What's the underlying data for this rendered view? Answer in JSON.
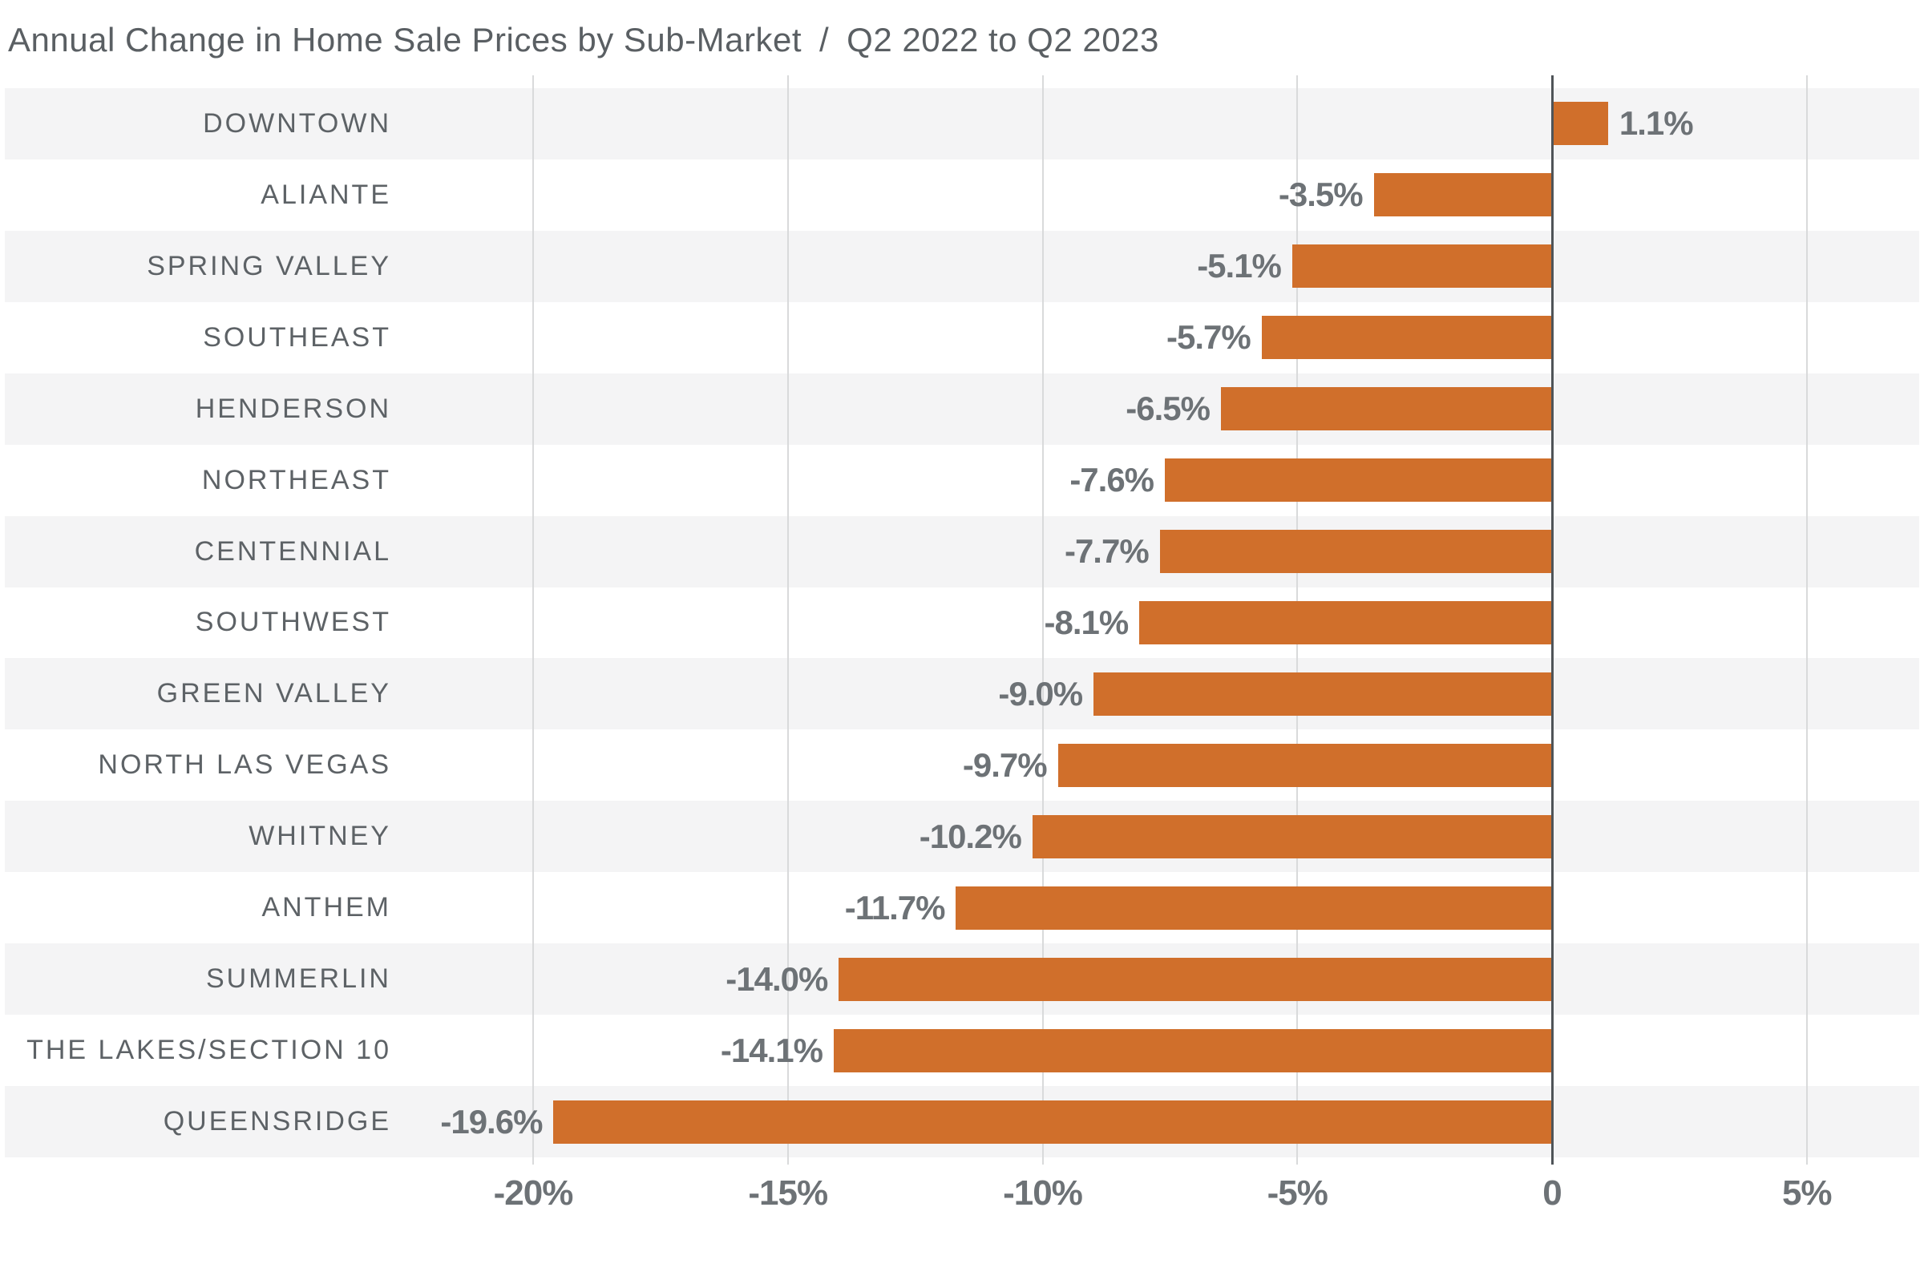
{
  "title": {
    "main": "Annual Change in Home Sale Prices by Sub-Market",
    "separator": "/",
    "period": "Q2 2022 to Q2 2023"
  },
  "colors": {
    "background": "#ffffff",
    "bar": "#d06f2b",
    "stripe": "#f4f4f5",
    "grid_line": "#d9dadb",
    "zero_line": "#4f5458",
    "title_text": "#5a5f63",
    "category_text": "#5d6266",
    "value_text": "#6d7276",
    "tick_text": "#6d7276"
  },
  "chart_data": {
    "type": "bar",
    "orientation": "horizontal",
    "title": "Annual Change in Home Sale Prices by Sub-Market / Q2 2022 to Q2 2023",
    "categories": [
      "DOWNTOWN",
      "ALIANTE",
      "SPRING VALLEY",
      "SOUTHEAST",
      "HENDERSON",
      "NORTHEAST",
      "CENTENNIAL",
      "SOUTHWEST",
      "GREEN VALLEY",
      "NORTH LAS VEGAS",
      "WHITNEY",
      "ANTHEM",
      "SUMMERLIN",
      "THE LAKES/SECTION 10",
      "QUEENSRIDGE"
    ],
    "values": [
      1.1,
      -3.5,
      -5.1,
      -5.7,
      -6.5,
      -7.6,
      -7.7,
      -8.1,
      -9.0,
      -9.7,
      -10.2,
      -11.7,
      -14.0,
      -14.1,
      -19.6
    ],
    "value_labels": [
      "1.1%",
      "-3.5%",
      "-5.1%",
      "-5.7%",
      "-6.5%",
      "-7.6%",
      "-7.7%",
      "-8.1%",
      "-9.0%",
      "-9.7%",
      "-10.2%",
      "-11.7%",
      "-14.0%",
      "-14.1%",
      "-19.6%"
    ],
    "x_ticks": [
      {
        "value": -20,
        "label": "-20%"
      },
      {
        "value": -15,
        "label": "-15%"
      },
      {
        "value": -10,
        "label": "-10%"
      },
      {
        "value": -5,
        "label": "-5%"
      },
      {
        "value": 0,
        "label": "0"
      },
      {
        "value": 5,
        "label": "5%"
      }
    ],
    "xlim": [
      -30.4,
      7.3
    ],
    "unit": "%",
    "grid": "vertical",
    "legend": "none",
    "row_striping": "alternating"
  }
}
